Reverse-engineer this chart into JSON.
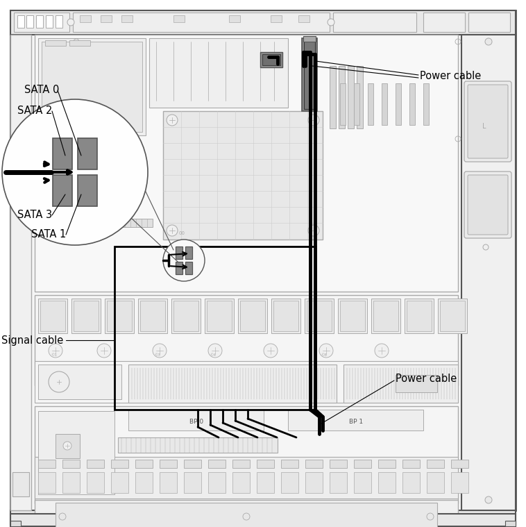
{
  "bg_color": "#ffffff",
  "lc": "#aaaaaa",
  "dc": "#555555",
  "vlc": "#cccccc",
  "cc": "#000000",
  "gc": "#888888",
  "labels": {
    "sata0": "SATA 0",
    "sata1": "SATA 1",
    "sata2": "SATA 2",
    "sata3": "SATA 3",
    "signal_cable": "Signal cable",
    "power_cable_top": "Power cable",
    "power_cable_bottom": "Power cable"
  },
  "figsize": [
    7.58,
    7.59
  ],
  "dpi": 100
}
